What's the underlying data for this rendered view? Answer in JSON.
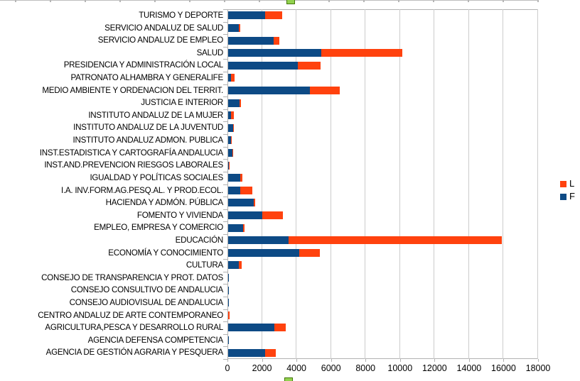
{
  "chart_data": {
    "type": "bar",
    "orientation": "horizontal",
    "stacked": true,
    "title": "",
    "xlabel": "",
    "ylabel": "",
    "xlim": [
      0,
      18000
    ],
    "x_tick_step": 2000,
    "x_tick_labels": [
      "0",
      "2000",
      "4000",
      "6000",
      "8000",
      "10000",
      "12000",
      "14000",
      "16000",
      "18000"
    ],
    "grid": true,
    "legend_position": "right",
    "legend_items": [
      {
        "label": "L",
        "color": "#FF420E"
      },
      {
        "label": "F",
        "color": "#0D4A85"
      }
    ],
    "categories": [
      "TURISMO Y DEPORTE",
      "SERVICIO ANDALUZ DE SALUD",
      "SERVICIO ANDALUZ DE EMPLEO",
      "SALUD",
      "PRESIDENCIA Y ADMINISTRACIÓN LOCAL",
      "PATRONATO ALHAMBRA Y GENERALIFE",
      "MEDIO AMBIENTE Y ORDENACION DEL TERRIT.",
      "JUSTICIA E INTERIOR",
      "INSTITUTO ANDALUZ DE LA MUJER",
      "INSTITUTO ANDALUZ DE LA JUVENTUD",
      "INSTITUTO ANDALUZ ADMON. PUBLICA",
      "INST.ESTADISTICA Y CARTOGRAFÍA ANDALUCIA",
      "INST.AND.PREVENCION RIESGOS LABORALES",
      "IGUALDAD Y POLÍTICAS SOCIALES",
      "I.A. INV.FORM.AG.PESQ.AL. Y PROD.ECOL.",
      "HACIENDA Y ADMÓN. PÚBLICA",
      "FOMENTO Y VIVIENDA",
      "EMPLEO, EMPRESA Y COMERCIO",
      "EDUCACIÓN",
      "ECONOMÍA Y CONOCIMIENTO",
      "CULTURA",
      "CONSEJO DE TRANSPARENCIA Y PROT. DATOS",
      "CONSEJO CONSULTIVO DE ANDALUCIA",
      "CONSEJO AUDIOVISUAL DE ANDALUCIA",
      "CENTRO ANDALUZ DE ARTE CONTEMPORANEO",
      "AGRICULTURA,PESCA Y DESARROLLO RURAL",
      "AGENCIA DEFENSA COMPETENCIA",
      "AGENCIA DE GESTIÓN AGRARIA Y PESQUERA"
    ],
    "series": [
      {
        "name": "F",
        "color": "#0D4A85",
        "values": [
          2150,
          620,
          2650,
          5400,
          4040,
          160,
          4730,
          640,
          160,
          300,
          170,
          230,
          50,
          700,
          720,
          1500,
          2000,
          870,
          3500,
          4130,
          600,
          30,
          40,
          40,
          20,
          2700,
          50,
          2150
        ]
      },
      {
        "name": "L",
        "color": "#FF420E",
        "values": [
          1000,
          80,
          320,
          4700,
          1310,
          210,
          1750,
          90,
          160,
          40,
          20,
          20,
          10,
          110,
          690,
          80,
          1180,
          60,
          12400,
          1200,
          200,
          0,
          0,
          0,
          60,
          630,
          0,
          620
        ]
      }
    ]
  },
  "selection": {
    "handle_color": "#92D14F",
    "selected": true
  }
}
